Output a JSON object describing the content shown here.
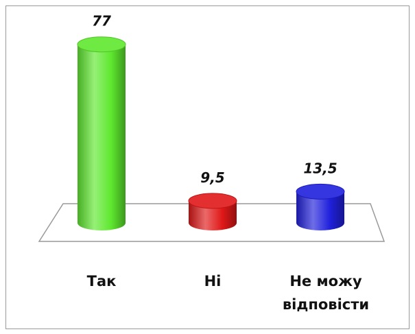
{
  "chart_data": {
    "type": "bar",
    "categories": [
      "Так",
      "Ні",
      "Не можу відповісти"
    ],
    "values": [
      77,
      9.5,
      13.5
    ],
    "value_labels": [
      "77",
      "9,5",
      "13,5"
    ],
    "colors": [
      "#5ee82e",
      "#e01818",
      "#2020dc"
    ]
  }
}
